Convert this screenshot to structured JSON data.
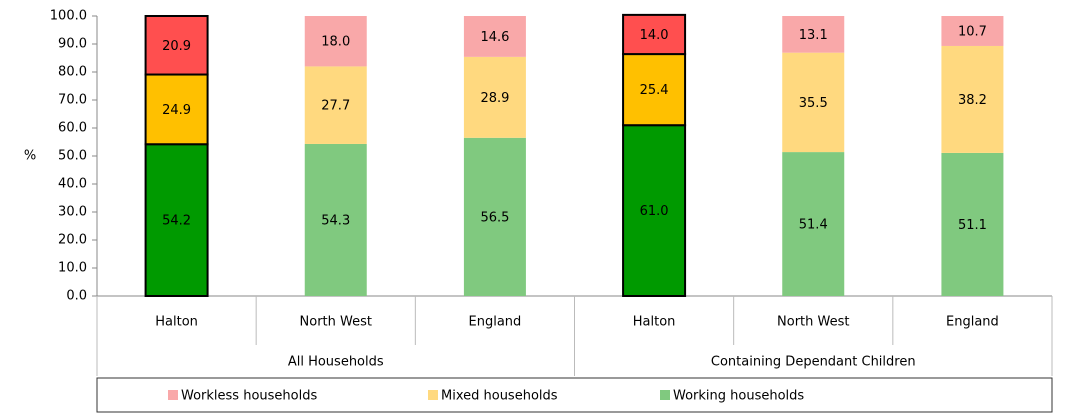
{
  "chart_data": {
    "type": "stacked_bar",
    "y_label": "%",
    "category_groups": [
      {
        "name": "All Households",
        "categories": [
          "Halton",
          "North West",
          "England"
        ]
      },
      {
        "name": "Containing Dependant Children",
        "categories": [
          "Halton",
          "North West",
          "England"
        ]
      }
    ],
    "highlight": [
      true,
      false,
      false,
      true,
      false,
      false
    ],
    "series": [
      {
        "name": "Workless households",
        "color": "#f9a8a9",
        "highlight_color": "#ff4f4f",
        "values": [
          20.9,
          18.0,
          14.6,
          14.0,
          13.1,
          10.7
        ],
        "value_labels": [
          "20.9",
          "18.0",
          "14.6",
          "14.0",
          "13.1",
          "10.7"
        ]
      },
      {
        "name": "Mixed households",
        "color": "#ffd97f",
        "highlight_color": "#ffc000",
        "values": [
          24.9,
          27.7,
          28.9,
          25.4,
          35.5,
          38.2
        ],
        "value_labels": [
          "24.9",
          "27.7",
          "28.9",
          "25.4",
          "35.5",
          "38.2"
        ]
      },
      {
        "name": "Working households",
        "color": "#80c97f",
        "highlight_color": "#009a00",
        "values": [
          54.2,
          54.3,
          56.5,
          61.0,
          51.4,
          51.1
        ],
        "value_labels": [
          "54.2",
          "54.3",
          "56.5",
          "61.0",
          "51.4",
          "51.1"
        ]
      }
    ],
    "ylim": [
      0,
      100
    ],
    "yticks": [
      {
        "value": 0,
        "label": "0.0"
      },
      {
        "value": 10,
        "label": "10.0"
      },
      {
        "value": 20,
        "label": "20.0"
      },
      {
        "value": 30,
        "label": "30.0"
      },
      {
        "value": 40,
        "label": "40.0"
      },
      {
        "value": 50,
        "label": "50.0"
      },
      {
        "value": 60,
        "label": "60.0"
      },
      {
        "value": 70,
        "label": "70.0"
      },
      {
        "value": 80,
        "label": "80.0"
      },
      {
        "value": 90,
        "label": "90.0"
      },
      {
        "value": 100,
        "label": "100.0"
      }
    ]
  }
}
